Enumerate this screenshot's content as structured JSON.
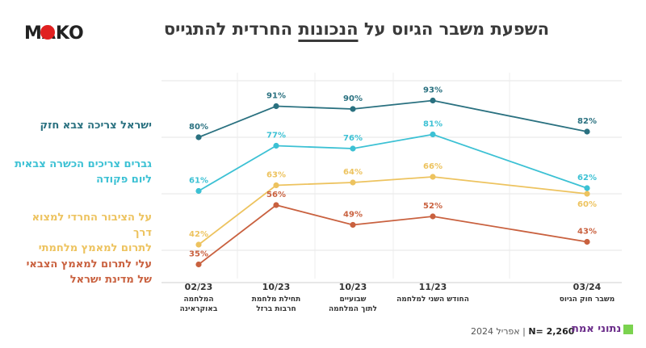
{
  "header": {
    "title_part1": "השפעת משבר הגיוס על ",
    "title_part2": "הנכונות",
    "title_part3": " החרדית להתגייס",
    "logo_text": "MAKO"
  },
  "footer": {
    "n_label": "N= 2,260",
    "date": "אפריל 2024",
    "source": "נתוני אמת"
  },
  "chart_data": {
    "type": "line",
    "x_labels": [
      {
        "date": "02/23",
        "line1": "המלחמה",
        "line2": "באוקראינה"
      },
      {
        "date": "10/23",
        "line1": "תחילת מלחמת",
        "line2": "חרבות ברזל"
      },
      {
        "date": "10/23",
        "line1": "שבועיים",
        "line2": "לתוך המלחמה"
      },
      {
        "date": "11/23",
        "line1": "החודש השני למלחמה",
        "line2": ""
      },
      {
        "date": "03/24",
        "line1": "משבר חוק הגיוס",
        "line2": ""
      }
    ],
    "series": [
      {
        "name_lines": [
          "ישראל צריכה צבא חזק"
        ],
        "color": "#2a7180",
        "values": [
          80,
          91,
          90,
          93,
          82
        ]
      },
      {
        "name_lines": [
          "גברים צריכים הכשרה צבאית",
          "ליום פקודה"
        ],
        "color": "#3cc1d4",
        "values": [
          61,
          77,
          76,
          81,
          62
        ]
      },
      {
        "name_lines": [
          "על הציבור החרדי למצוא דרך",
          "לתרום למאמץ מלחמתי"
        ],
        "color": "#edc35f",
        "values": [
          42,
          63,
          64,
          66,
          60
        ]
      },
      {
        "name_lines": [
          "עלי לתרום למאמץ הצבאי",
          "של מדינת ישראל"
        ],
        "color": "#c9613f",
        "values": [
          35,
          56,
          49,
          52,
          43
        ]
      }
    ],
    "ylim": [
      30,
      100
    ],
    "grid": true
  }
}
